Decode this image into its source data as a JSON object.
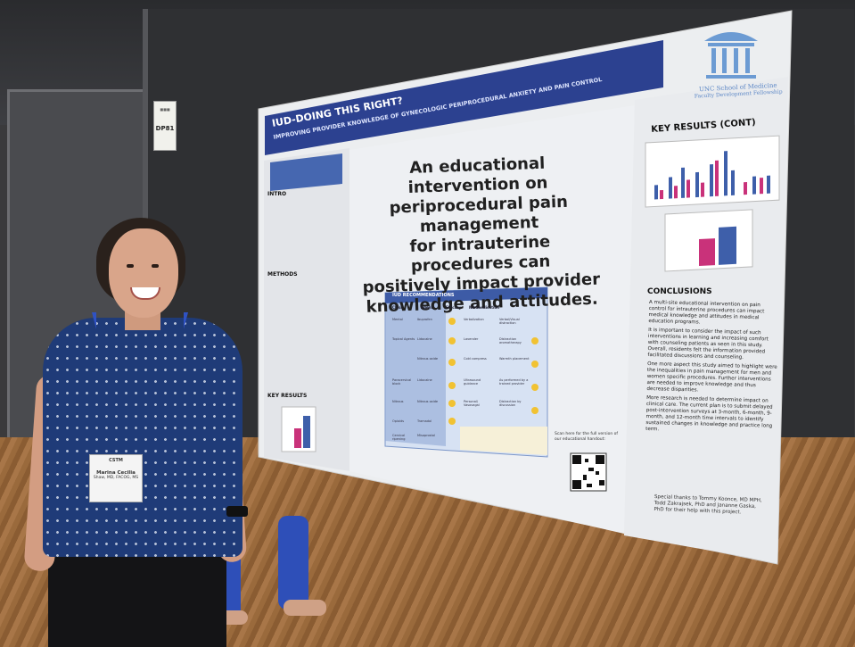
{
  "booth": {
    "number": "DP81"
  },
  "poster": {
    "title": "IUD-DOING THIS RIGHT?",
    "subtitle": "IMPROVING PROVIDER KNOWLEDGE OF GYNECOLOGIC PERIPROCEDURAL ANXIETY AND PAIN CONTROL",
    "headline_lines": [
      "An educational intervention on",
      "periprocedural pain management",
      "for intrauterine procedures can",
      "positively impact provider",
      "knowledge and attitudes."
    ],
    "institution_lines": [
      "UNC School of Medicine",
      "Faculty Development Fellowship"
    ],
    "sections": {
      "intro": "INTRO",
      "methods": "METHODS",
      "key_results": "KEY RESULTS",
      "key_results_cont": "KEY RESULTS (CONT)",
      "conclusions": "CONCLUSIONS"
    },
    "table_title": "IUD RECOMMENDATIONS",
    "table_headers": [
      "Class",
      "Agent",
      "Efficacy",
      "Nonmedication",
      "",
      ""
    ],
    "table_rows": [
      [
        "Mental",
        "Ibuprofen",
        "",
        "Verbalization",
        "Verbal/Visual distraction",
        ""
      ],
      [
        "Topical Agents",
        "Lidocaine",
        "",
        "Lavender",
        "Distraction aromatherapy",
        ""
      ],
      [
        "",
        "Nitrous oxide",
        "",
        "Cold compress",
        "Warmth placement",
        ""
      ],
      [
        "Paracervical block",
        "Lidocaine",
        "",
        "Ultrasound guidance",
        "As performed by a trained provider",
        ""
      ],
      [
        "Nitrous",
        "Nitrous oxide",
        "",
        "Personal/ Vasovagal",
        "Distraction by discussion",
        ""
      ],
      [
        "Opioids",
        "Tramadol",
        "",
        "",
        "",
        ""
      ],
      [
        "Cervical ripening",
        "Misoprostol",
        "",
        "",
        "",
        ""
      ]
    ],
    "scan_text": "Scan here for the full version of our educational handout:",
    "conclusions": [
      "A multi-site educational intervention on pain control for intrauterine procedures can impact medical knowledge and attitudes in medical education programs.",
      "It is important to consider the impact of such interventions in learning and increasing comfort with counseling patients as seen in this study. Overall, residents felt the information provided facilitated discussions and counseling.",
      "One more aspect this study aimed to highlight were the inequalities in pain management for men and women specific procedures. Further interventions are needed to improve knowledge and thus decrease disparities.",
      "More research is needed to determine impact on clinical care. The current plan is to submit delayed post-intervention surveys at 3-month, 6-month, 9-month, and 12-month time intervals to identify sustained changes in knowledge and practice long term."
    ],
    "thanks": "Special thanks to Tommy Koonce, MD MPH, Todd Zakrajsek, PhD and Jananne Gaska, PhD for their help with this project."
  },
  "badge": {
    "org": "CSTM",
    "name": "Marina Cecilia",
    "creds": "Shaw, MD, FACOG, MS"
  },
  "colors": {
    "banner": "#2e4590",
    "poster": "#eceef0",
    "bar_blue": "#3e5faa",
    "bar_pink": "#c9327a"
  }
}
